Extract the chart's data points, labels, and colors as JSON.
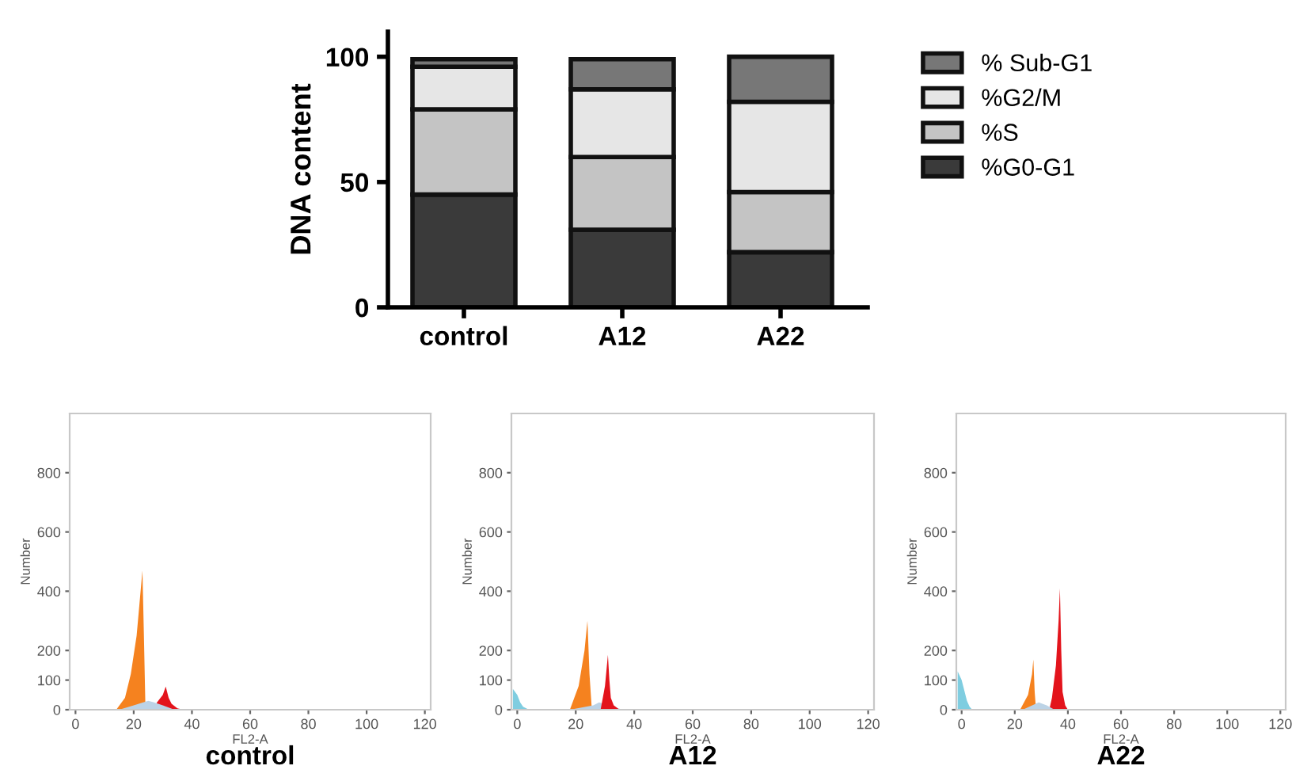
{
  "chart_data": [
    {
      "type": "bar",
      "stacked": true,
      "ylabel": "DNA content",
      "categories": [
        "control",
        "A12",
        "A22"
      ],
      "ylim": [
        0,
        110
      ],
      "yticks": [
        0,
        50,
        100
      ],
      "legend": "right",
      "grid": false,
      "series": [
        {
          "name": "%G0-G1",
          "color": "#3a3a3a",
          "values": [
            45,
            31,
            22
          ]
        },
        {
          "name": "%S",
          "color": "#c4c4c4",
          "values": [
            34,
            29,
            24
          ]
        },
        {
          "name": "%G2/M",
          "color": "#e6e6e6",
          "values": [
            17,
            27,
            36
          ]
        },
        {
          "name": "% Sub-G1",
          "color": "#777777",
          "values": [
            3,
            12,
            18
          ]
        }
      ]
    },
    {
      "type": "area",
      "title": "control",
      "xlabel": "FL2-A",
      "ylabel": "Number",
      "xlim": [
        -2,
        122
      ],
      "xticks": [
        0,
        20,
        40,
        60,
        80,
        100,
        120
      ],
      "ylim": [
        0,
        1000
      ],
      "yticks": [
        0,
        100,
        200,
        400,
        600,
        800
      ],
      "grid": false,
      "legend": false,
      "series": [
        {
          "color": "#f5821f",
          "x": [
            14,
            17,
            19,
            21,
            23,
            23.5,
            24,
            24.5
          ],
          "values": [
            0,
            40,
            120,
            250,
            470,
            250,
            20,
            0
          ]
        },
        {
          "color": "#e3141c",
          "x": [
            27,
            28,
            30,
            31,
            32,
            33,
            35,
            37
          ],
          "values": [
            0,
            25,
            50,
            78,
            40,
            20,
            5,
            0
          ]
        },
        {
          "color": "#bcd3e6",
          "x": [
            15,
            20,
            25,
            27,
            30,
            34
          ],
          "values": [
            0,
            15,
            30,
            25,
            15,
            0
          ]
        }
      ]
    },
    {
      "type": "area",
      "title": "A12",
      "xlabel": "FL2-A",
      "ylabel": "Number",
      "xlim": [
        -2,
        122
      ],
      "xticks": [
        0,
        20,
        40,
        60,
        80,
        100,
        120
      ],
      "ylim": [
        0,
        1000
      ],
      "yticks": [
        0,
        100,
        200,
        400,
        600,
        800
      ],
      "grid": false,
      "legend": false,
      "series": [
        {
          "color": "#7fcde0",
          "x": [
            -1.5,
            0,
            1,
            2,
            4
          ],
          "values": [
            70,
            50,
            25,
            10,
            0
          ]
        },
        {
          "color": "#f5821f",
          "x": [
            18,
            21,
            23,
            24,
            24.7,
            25.5
          ],
          "values": [
            0,
            80,
            200,
            300,
            120,
            0
          ]
        },
        {
          "color": "#bcd3e6",
          "x": [
            18,
            26,
            28,
            36
          ],
          "values": [
            0,
            15,
            25,
            0
          ]
        },
        {
          "color": "#e3141c",
          "x": [
            28.5,
            30,
            31,
            31.5,
            32,
            33,
            35
          ],
          "values": [
            0,
            80,
            185,
            100,
            40,
            15,
            0
          ]
        }
      ]
    },
    {
      "type": "area",
      "title": "A22",
      "xlabel": "FL2-A",
      "ylabel": "Number",
      "xlim": [
        -2,
        122
      ],
      "xticks": [
        0,
        20,
        40,
        60,
        80,
        100,
        120
      ],
      "ylim": [
        0,
        1000
      ],
      "yticks": [
        0,
        100,
        200,
        400,
        600,
        800
      ],
      "grid": false,
      "legend": false,
      "series": [
        {
          "color": "#7fcde0",
          "x": [
            -1.5,
            0,
            2,
            3,
            4
          ],
          "values": [
            130,
            100,
            30,
            10,
            0
          ]
        },
        {
          "color": "#f5821f",
          "x": [
            22,
            25,
            26.5,
            27,
            27.5,
            28
          ],
          "values": [
            0,
            50,
            120,
            170,
            60,
            0
          ]
        },
        {
          "color": "#e3141c",
          "x": [
            33,
            34,
            35.5,
            36.5,
            37,
            37.5,
            38,
            39,
            40
          ],
          "values": [
            0,
            40,
            150,
            300,
            410,
            200,
            60,
            15,
            0
          ]
        },
        {
          "color": "#bcd3e6",
          "x": [
            23,
            29,
            32,
            35
          ],
          "values": [
            0,
            25,
            15,
            0
          ]
        }
      ]
    }
  ]
}
